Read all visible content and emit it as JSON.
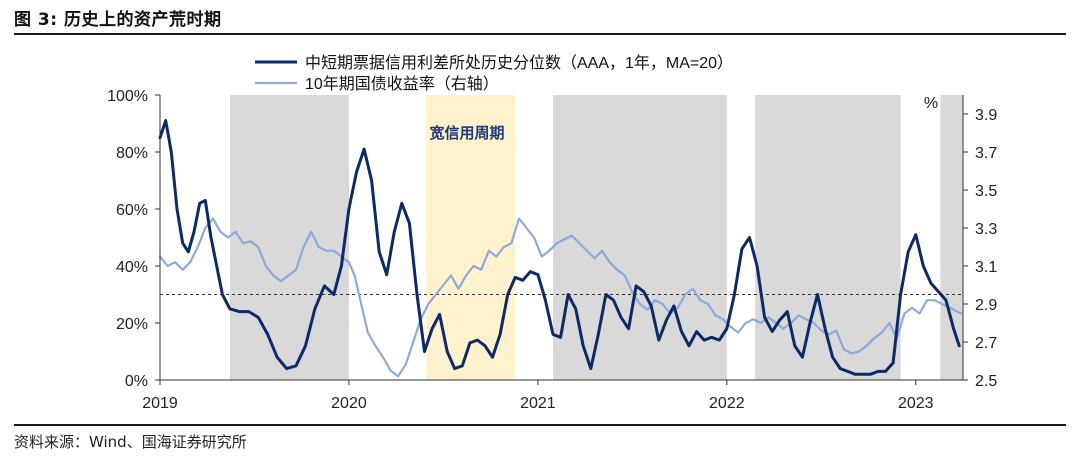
{
  "figure": {
    "title": "图 3:  历史上的资产荒时期",
    "source": "资料来源：Wind、国海证券研究所"
  },
  "colors": {
    "series_credit": "#0d2a66",
    "series_yield": "#8eaadb",
    "shade_gray": "#d9d9d9",
    "shade_yellow": "#fff2cc",
    "annotation": "#1f3a7a",
    "threshold_line": "#333333"
  },
  "chart_data": {
    "type": "line",
    "title": "历史上的资产荒时期",
    "legend": {
      "position": "top",
      "entries": [
        "中短期票据信用利差所处历史分位数（AAA，1年，MA=20）",
        "10年期国债收益率（右轴）"
      ]
    },
    "x_axis": {
      "type": "time",
      "range": [
        2019.0,
        2023.25
      ],
      "tick_labels": [
        "2019",
        "2020",
        "2021",
        "2022",
        "2023"
      ],
      "tick_values": [
        2019,
        2020,
        2021,
        2022,
        2023
      ]
    },
    "y_left": {
      "range": [
        0,
        100
      ],
      "unit": "%",
      "tick_labels": [
        "0%",
        "20%",
        "40%",
        "60%",
        "80%",
        "100%"
      ],
      "tick_values": [
        0,
        20,
        40,
        60,
        80,
        100
      ]
    },
    "y_right": {
      "range": [
        2.5,
        4.0
      ],
      "unit_label": "%",
      "tick_labels": [
        "2.5",
        "2.7",
        "2.9",
        "3.1",
        "3.3",
        "3.5",
        "3.7",
        "3.9"
      ],
      "tick_values": [
        2.5,
        2.7,
        2.9,
        3.1,
        3.3,
        3.5,
        3.7,
        3.9
      ]
    },
    "reference_line": {
      "axis": "left",
      "value": 30,
      "style": "dashed"
    },
    "shaded_periods": [
      {
        "label": "",
        "start": 2019.37,
        "end": 2020.0,
        "color": "gray"
      },
      {
        "label": "宽信用周期",
        "start": 2020.41,
        "end": 2020.88,
        "color": "yellow"
      },
      {
        "label": "",
        "start": 2021.08,
        "end": 2022.0,
        "color": "gray"
      },
      {
        "label": "",
        "start": 2022.15,
        "end": 2022.92,
        "color": "gray"
      },
      {
        "label": "",
        "start": 2023.13,
        "end": 2023.25,
        "color": "gray"
      }
    ],
    "annotation": "宽信用周期",
    "series": [
      {
        "name": "中短期票据信用利差所处历史分位数（AAA，1年，MA=20）",
        "axis": "left",
        "x": [
          2019.0,
          2019.03,
          2019.06,
          2019.09,
          2019.12,
          2019.15,
          2019.18,
          2019.21,
          2019.24,
          2019.27,
          2019.3,
          2019.33,
          2019.37,
          2019.42,
          2019.47,
          2019.52,
          2019.57,
          2019.62,
          2019.67,
          2019.72,
          2019.77,
          2019.82,
          2019.87,
          2019.92,
          2019.96,
          2020.0,
          2020.04,
          2020.08,
          2020.12,
          2020.16,
          2020.2,
          2020.24,
          2020.28,
          2020.32,
          2020.36,
          2020.4,
          2020.44,
          2020.48,
          2020.52,
          2020.56,
          2020.6,
          2020.64,
          2020.68,
          2020.72,
          2020.76,
          2020.8,
          2020.84,
          2020.88,
          2020.92,
          2020.96,
          2021.0,
          2021.04,
          2021.08,
          2021.12,
          2021.16,
          2021.2,
          2021.24,
          2021.28,
          2021.32,
          2021.36,
          2021.4,
          2021.44,
          2021.48,
          2021.52,
          2021.56,
          2021.6,
          2021.64,
          2021.68,
          2021.72,
          2021.76,
          2021.8,
          2021.84,
          2021.88,
          2021.92,
          2021.96,
          2022.0,
          2022.04,
          2022.08,
          2022.12,
          2022.16,
          2022.2,
          2022.24,
          2022.28,
          2022.32,
          2022.36,
          2022.4,
          2022.44,
          2022.48,
          2022.52,
          2022.56,
          2022.6,
          2022.64,
          2022.68,
          2022.72,
          2022.76,
          2022.8,
          2022.84,
          2022.88,
          2022.92,
          2022.96,
          2023.0,
          2023.04,
          2023.08,
          2023.12,
          2023.16,
          2023.2,
          2023.23
        ],
        "values": [
          85,
          91,
          80,
          60,
          48,
          45,
          52,
          62,
          63,
          50,
          40,
          30,
          25,
          24,
          24,
          22,
          16,
          8,
          4,
          5,
          12,
          25,
          33,
          30,
          40,
          60,
          73,
          81,
          70,
          45,
          37,
          52,
          62,
          55,
          30,
          10,
          18,
          23,
          10,
          4,
          5,
          13,
          14,
          12,
          8,
          16,
          30,
          36,
          35,
          38,
          37,
          28,
          16,
          15,
          30,
          25,
          12,
          4,
          16,
          30,
          28,
          22,
          18,
          33,
          31,
          26,
          14,
          21,
          26,
          17,
          12,
          17,
          14,
          15,
          14,
          18,
          30,
          46,
          50,
          40,
          22,
          17,
          21,
          24,
          12,
          8,
          20,
          30,
          18,
          8,
          4,
          3,
          2,
          2,
          2,
          3,
          3,
          6,
          30,
          45,
          51,
          40,
          34,
          31,
          28,
          18,
          12
        ]
      },
      {
        "name": "10年期国债收益率（右轴）",
        "axis": "right",
        "x": [
          2019.0,
          2019.04,
          2019.08,
          2019.12,
          2019.16,
          2019.2,
          2019.24,
          2019.28,
          2019.32,
          2019.36,
          2019.4,
          2019.44,
          2019.48,
          2019.52,
          2019.56,
          2019.6,
          2019.64,
          2019.68,
          2019.72,
          2019.76,
          2019.8,
          2019.84,
          2019.88,
          2019.92,
          2019.96,
          2020.0,
          2020.03,
          2020.06,
          2020.1,
          2020.14,
          2020.18,
          2020.22,
          2020.26,
          2020.3,
          2020.34,
          2020.38,
          2020.42,
          2020.46,
          2020.5,
          2020.54,
          2020.58,
          2020.62,
          2020.66,
          2020.7,
          2020.74,
          2020.78,
          2020.82,
          2020.86,
          2020.9,
          2020.94,
          2020.98,
          2021.02,
          2021.06,
          2021.1,
          2021.14,
          2021.18,
          2021.22,
          2021.26,
          2021.3,
          2021.34,
          2021.38,
          2021.42,
          2021.46,
          2021.5,
          2021.54,
          2021.58,
          2021.62,
          2021.66,
          2021.7,
          2021.74,
          2021.78,
          2021.82,
          2021.86,
          2021.9,
          2021.94,
          2021.98,
          2022.02,
          2022.06,
          2022.1,
          2022.14,
          2022.18,
          2022.22,
          2022.26,
          2022.3,
          2022.34,
          2022.38,
          2022.42,
          2022.46,
          2022.5,
          2022.54,
          2022.58,
          2022.62,
          2022.66,
          2022.7,
          2022.74,
          2022.78,
          2022.82,
          2022.86,
          2022.9,
          2022.94,
          2022.98,
          2023.02,
          2023.06,
          2023.1,
          2023.14,
          2023.18,
          2023.22,
          2023.24
        ],
        "values": [
          3.15,
          3.1,
          3.12,
          3.08,
          3.12,
          3.2,
          3.3,
          3.35,
          3.28,
          3.25,
          3.28,
          3.22,
          3.23,
          3.2,
          3.1,
          3.05,
          3.02,
          3.05,
          3.08,
          3.2,
          3.28,
          3.2,
          3.18,
          3.18,
          3.15,
          3.12,
          3.05,
          2.92,
          2.75,
          2.68,
          2.62,
          2.55,
          2.52,
          2.58,
          2.7,
          2.82,
          2.9,
          2.95,
          3.0,
          3.05,
          2.98,
          3.05,
          3.1,
          3.08,
          3.18,
          3.15,
          3.2,
          3.22,
          3.35,
          3.3,
          3.25,
          3.15,
          3.18,
          3.22,
          3.24,
          3.26,
          3.22,
          3.18,
          3.14,
          3.18,
          3.12,
          3.08,
          3.05,
          2.96,
          2.9,
          2.87,
          2.92,
          2.9,
          2.85,
          2.88,
          2.95,
          2.98,
          2.92,
          2.9,
          2.84,
          2.82,
          2.78,
          2.75,
          2.8,
          2.82,
          2.8,
          2.83,
          2.8,
          2.77,
          2.8,
          2.84,
          2.82,
          2.8,
          2.76,
          2.74,
          2.76,
          2.66,
          2.64,
          2.65,
          2.68,
          2.72,
          2.75,
          2.8,
          2.72,
          2.85,
          2.88,
          2.85,
          2.92,
          2.92,
          2.9,
          2.88,
          2.86,
          2.85
        ]
      }
    ]
  }
}
